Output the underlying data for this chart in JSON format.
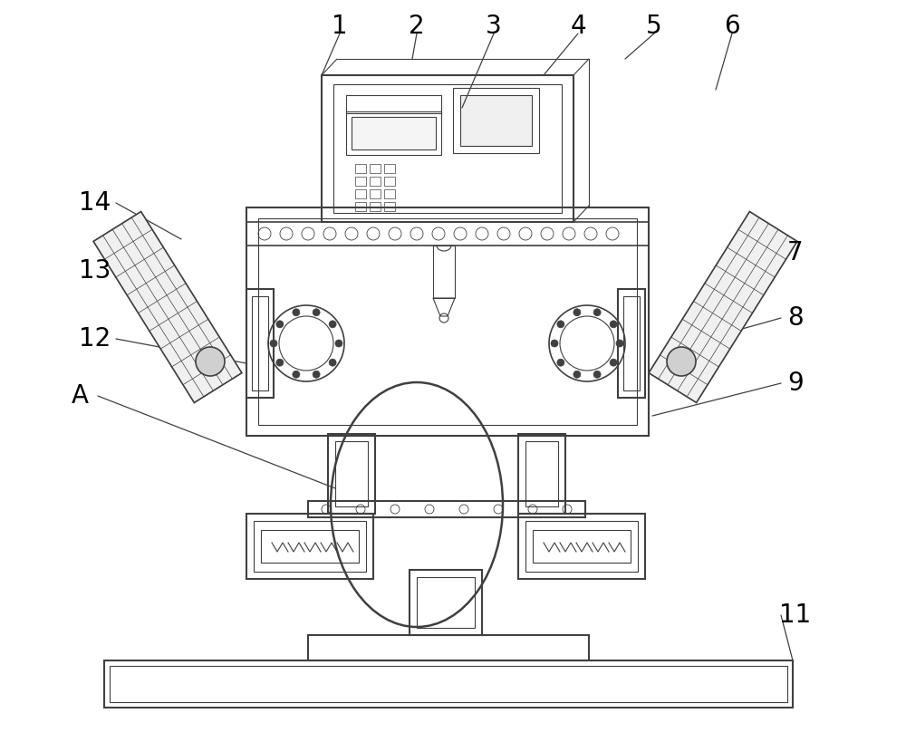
{
  "bg_color": "#ffffff",
  "line_color": "#404040",
  "lw_main": 1.5,
  "lw_thin": 0.8,
  "lw_med": 1.2,
  "label_fontsize": 20,
  "label_color": "#000000"
}
